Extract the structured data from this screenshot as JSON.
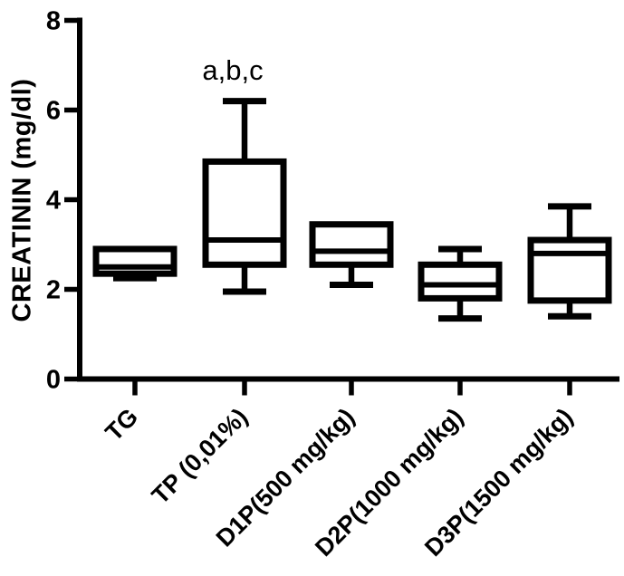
{
  "figure": {
    "background": "#ffffff",
    "ink": "#000000"
  },
  "chart_data": {
    "type": "boxplot",
    "title": "",
    "ylabel": "CREATININ (mg/dl)",
    "xlabel": "",
    "ylim": [
      0,
      8
    ],
    "yticks": [
      0,
      2,
      4,
      6,
      8
    ],
    "grid": false,
    "legend": false,
    "categories": [
      "TG",
      "TP (0,01%)",
      "D1P(500 mg/kg)",
      "D2P(1000 mg/kg)",
      "D3P(1500 mg/kg)"
    ],
    "series": [
      {
        "category": "TG",
        "min": 2.25,
        "q1": 2.35,
        "median": 2.5,
        "q3": 2.9,
        "max": 2.9
      },
      {
        "category": "TP (0,01%)",
        "min": 1.95,
        "q1": 2.55,
        "median": 3.1,
        "q3": 4.85,
        "max": 6.2
      },
      {
        "category": "D1P(500 mg/kg)",
        "min": 2.1,
        "q1": 2.55,
        "median": 2.85,
        "q3": 3.45,
        "max": 3.45
      },
      {
        "category": "D2P(1000 mg/kg)",
        "min": 1.35,
        "q1": 1.8,
        "median": 2.1,
        "q3": 2.55,
        "max": 2.9
      },
      {
        "category": "D3P(1500 mg/kg)",
        "min": 1.4,
        "q1": 1.75,
        "median": 2.8,
        "q3": 3.1,
        "max": 3.85
      }
    ],
    "annotations": [
      {
        "text": "a,b,c",
        "target": "TP (0,01%)",
        "position": "above-box"
      }
    ]
  }
}
